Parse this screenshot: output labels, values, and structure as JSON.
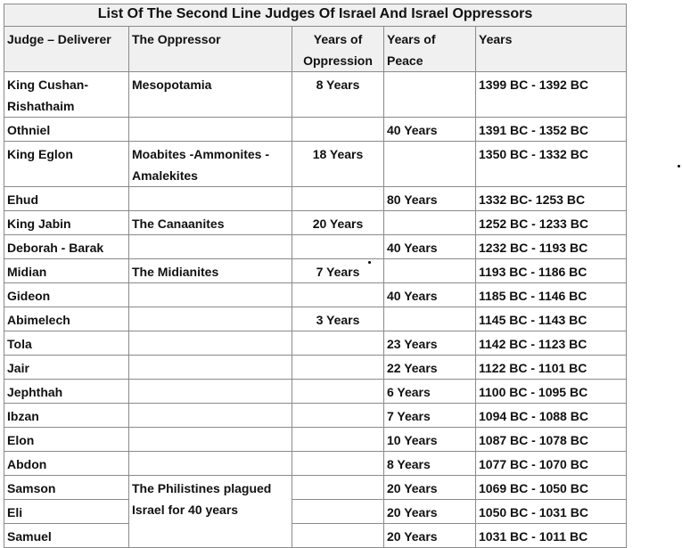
{
  "table": {
    "title": "List Of The Second Line Judges Of Israel And Israel Oppressors",
    "headers": [
      "Judge – Deliverer",
      "The Oppressor",
      "Years of Oppression",
      "Years of Peace",
      "Years"
    ],
    "rows": [
      [
        "King Cushan-Rishathaim",
        "Mesopotamia",
        "8 Years",
        null,
        "1399 BC - 1392 BC"
      ],
      [
        "Othniel",
        null,
        null,
        "40 Years",
        "1391 BC - 1352 BC"
      ],
      [
        "King Eglon",
        "Moabites -Ammonites -Amalekites",
        "18 Years",
        null,
        "1350 BC - 1332 BC"
      ],
      [
        "Ehud",
        null,
        null,
        "80 Years",
        "1332 BC- 1253 BC"
      ],
      [
        "King Jabin",
        "The Canaanites",
        "20 Years",
        null,
        "1252 BC - 1233 BC"
      ],
      [
        "Deborah - Barak",
        null,
        null,
        "40 Years",
        "1232 BC - 1193 BC"
      ],
      [
        "Midian",
        "The Midianites",
        "7 Years",
        null,
        "1193 BC - 1186 BC"
      ],
      [
        "Gideon",
        null,
        null,
        "40 Years",
        "1185 BC - 1146 BC"
      ],
      [
        "Abimelech",
        null,
        "3 Years",
        null,
        "1145 BC - 1143 BC"
      ],
      [
        "Tola",
        null,
        null,
        "23 Years",
        "1142 BC - 1123 BC"
      ],
      [
        "Jair",
        null,
        null,
        "22 Years",
        "1122 BC - 1101 BC"
      ],
      [
        "Jephthah",
        null,
        null,
        "6 Years",
        "1100 BC - 1095 BC"
      ],
      [
        "Ibzan",
        null,
        null,
        "7 Years",
        "1094 BC - 1088 BC"
      ],
      [
        "Elon",
        null,
        null,
        "10 Years",
        "1087 BC - 1078 BC"
      ],
      [
        "Abdon",
        null,
        null,
        "8 Years",
        "1077 BC - 1070 BC"
      ],
      [
        "Samson",
        "The Philistines plagued Israel for 40 years",
        null,
        "20 Years",
        "1069 BC - 1050 BC"
      ],
      [
        "Eli",
        null,
        null,
        "20 Years",
        "1050 BC - 1031 BC"
      ],
      [
        "Samuel",
        null,
        null,
        "20 Years",
        "1031 BC - 1011 BC"
      ]
    ]
  }
}
